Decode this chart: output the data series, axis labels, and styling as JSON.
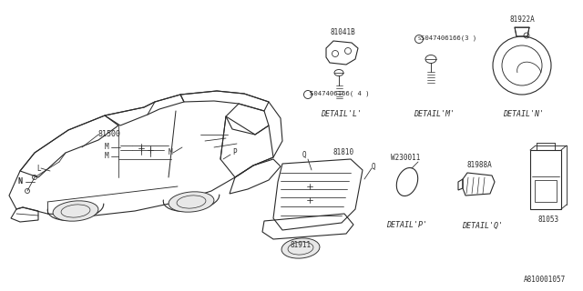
{
  "bg_color": "#ffffff",
  "line_color": "#2a2a2a",
  "text_color": "#2a2a2a",
  "part_numbers": {
    "main": "81500",
    "detail_l_part1": "81041B",
    "detail_l_screw1": "S047406166(3 )",
    "detail_l_screw2": "S047406166( 4 )",
    "detail_n": "81922A",
    "detail_p": "W230011",
    "detail_q_part": "81988A",
    "trunk_harness": "81810",
    "trunk_label": "81911",
    "connector": "81053",
    "ref_code": "A810001057"
  },
  "labels": {
    "detail_l": "DETAIL'L'",
    "detail_m": "DETAIL'M'",
    "detail_n": "DETAIL'N'",
    "detail_p": "DETAIL'P'",
    "detail_q": "DETAIL'Q'"
  }
}
